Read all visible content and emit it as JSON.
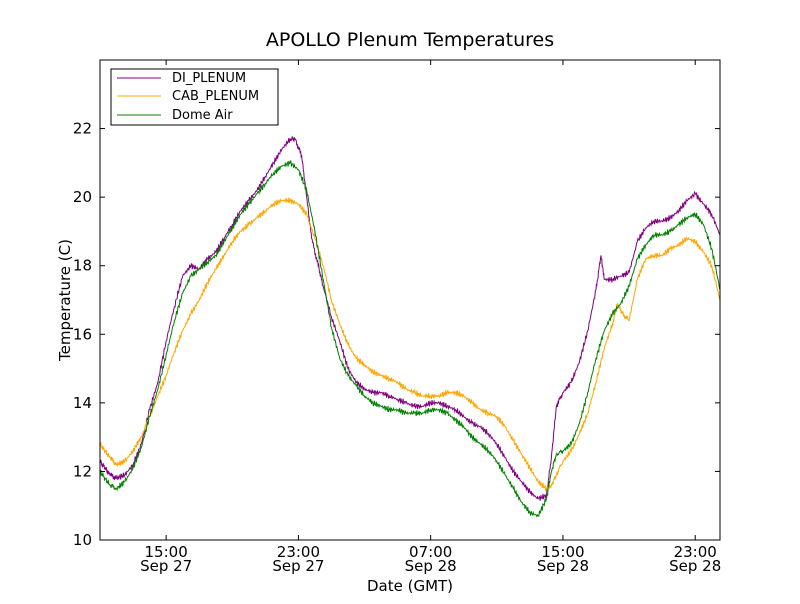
{
  "chart_data": {
    "type": "line",
    "title": "APOLLO Plenum Temperatures",
    "xlabel": "Date (GMT)",
    "ylabel": "Temperature (C)",
    "xlim": [
      11.0,
      48.5
    ],
    "ylim": [
      10,
      24
    ],
    "x_unit": "hours since Sep 27 00:00 GMT",
    "yticks": [
      10,
      12,
      14,
      16,
      18,
      20,
      22
    ],
    "xticks": [
      {
        "x": 15,
        "time": "15:00",
        "date": "Sep 27"
      },
      {
        "x": 23,
        "time": "23:00",
        "date": "Sep 27"
      },
      {
        "x": 31,
        "time": "07:00",
        "date": "Sep 28"
      },
      {
        "x": 39,
        "time": "15:00",
        "date": "Sep 28"
      },
      {
        "x": 47,
        "time": "23:00",
        "date": "Sep 28"
      }
    ],
    "legend": {
      "position": "top-left"
    },
    "series": [
      {
        "name": "DI_PLENUM",
        "color": "#800080",
        "x": [
          11.0,
          11.3,
          11.6,
          12.0,
          12.5,
          13.0,
          13.5,
          14.0,
          14.5,
          15.0,
          15.5,
          16.0,
          16.5,
          17.0,
          17.5,
          18.0,
          18.5,
          19.0,
          19.5,
          20.0,
          20.5,
          21.0,
          21.5,
          22.0,
          22.5,
          22.8,
          23.2,
          23.5,
          23.8,
          24.2,
          24.5,
          25.0,
          25.5,
          26.0,
          26.5,
          27.0,
          27.5,
          28.0,
          28.5,
          29.0,
          29.5,
          30.0,
          30.5,
          31.0,
          31.5,
          32.0,
          32.5,
          33.0,
          33.5,
          34.0,
          34.5,
          35.0,
          35.5,
          36.0,
          36.5,
          37.0,
          37.5,
          38.0,
          38.3,
          38.6,
          39.0,
          39.5,
          40.0,
          40.5,
          41.0,
          41.3,
          41.5,
          42.0,
          42.5,
          43.0,
          43.5,
          44.0,
          44.5,
          45.0,
          45.5,
          46.0,
          46.5,
          47.0,
          47.5,
          48.0,
          48.5
        ],
        "values": [
          12.3,
          12.1,
          11.9,
          11.8,
          11.9,
          12.2,
          12.8,
          13.8,
          14.6,
          15.8,
          16.8,
          17.7,
          18.0,
          17.9,
          18.2,
          18.4,
          18.8,
          19.2,
          19.6,
          19.9,
          20.2,
          20.6,
          21.0,
          21.4,
          21.7,
          21.7,
          21.2,
          20.0,
          18.8,
          18.0,
          17.4,
          16.5,
          15.8,
          15.0,
          14.6,
          14.4,
          14.3,
          14.3,
          14.2,
          14.1,
          14.0,
          13.9,
          13.9,
          14.0,
          14.0,
          13.9,
          13.8,
          13.6,
          13.4,
          13.3,
          13.1,
          12.8,
          12.4,
          12.0,
          11.7,
          11.4,
          11.2,
          11.3,
          12.4,
          13.9,
          14.3,
          14.6,
          15.2,
          16.1,
          17.3,
          18.3,
          17.6,
          17.6,
          17.7,
          17.8,
          18.7,
          19.1,
          19.3,
          19.3,
          19.4,
          19.6,
          19.9,
          20.1,
          19.8,
          19.5,
          18.9
        ]
      },
      {
        "name": "CAB_PLENUM",
        "color": "#FFA500",
        "x": [
          11.0,
          11.3,
          11.6,
          12.0,
          12.5,
          13.0,
          13.5,
          14.0,
          14.5,
          15.0,
          15.5,
          16.0,
          16.5,
          17.0,
          17.5,
          18.0,
          18.5,
          19.0,
          19.5,
          20.0,
          20.5,
          21.0,
          21.5,
          22.0,
          22.5,
          23.0,
          23.5,
          24.0,
          24.5,
          25.0,
          25.5,
          26.0,
          26.5,
          27.0,
          27.5,
          28.0,
          28.5,
          29.0,
          29.5,
          30.0,
          30.5,
          31.0,
          31.5,
          32.0,
          32.5,
          33.0,
          33.5,
          34.0,
          34.5,
          35.0,
          35.5,
          36.0,
          36.5,
          37.0,
          37.5,
          38.0,
          38.3,
          38.6,
          39.0,
          39.5,
          40.0,
          40.5,
          41.0,
          41.5,
          42.0,
          42.3,
          42.6,
          43.0,
          43.5,
          44.0,
          44.5,
          45.0,
          45.5,
          46.0,
          46.5,
          47.0,
          47.5,
          48.0,
          48.5
        ],
        "values": [
          12.8,
          12.6,
          12.4,
          12.2,
          12.3,
          12.6,
          13.0,
          13.6,
          14.2,
          14.8,
          15.5,
          16.1,
          16.6,
          17.0,
          17.5,
          17.9,
          18.3,
          18.7,
          19.0,
          19.2,
          19.4,
          19.6,
          19.8,
          19.9,
          19.9,
          19.8,
          19.5,
          18.8,
          18.0,
          17.0,
          16.3,
          15.7,
          15.3,
          15.1,
          14.9,
          14.8,
          14.7,
          14.6,
          14.4,
          14.3,
          14.2,
          14.2,
          14.2,
          14.3,
          14.3,
          14.2,
          14.0,
          13.8,
          13.7,
          13.6,
          13.3,
          12.9,
          12.5,
          12.1,
          11.7,
          11.5,
          11.6,
          11.9,
          12.3,
          12.6,
          13.1,
          13.7,
          14.6,
          15.6,
          16.3,
          16.9,
          16.6,
          16.4,
          17.6,
          18.2,
          18.3,
          18.3,
          18.5,
          18.6,
          18.8,
          18.7,
          18.4,
          18.0,
          17.0
        ]
      },
      {
        "name": "Dome Air",
        "color": "#008000",
        "x": [
          11.0,
          11.3,
          11.6,
          12.0,
          12.5,
          13.0,
          13.5,
          14.0,
          14.5,
          15.0,
          15.5,
          16.0,
          16.5,
          17.0,
          17.5,
          18.0,
          18.5,
          19.0,
          19.5,
          20.0,
          20.5,
          21.0,
          21.5,
          22.0,
          22.5,
          23.0,
          23.5,
          24.0,
          24.5,
          25.0,
          25.5,
          26.0,
          26.5,
          27.0,
          27.5,
          28.0,
          28.5,
          29.0,
          29.5,
          30.0,
          30.5,
          31.0,
          31.5,
          32.0,
          32.5,
          33.0,
          33.5,
          34.0,
          34.5,
          35.0,
          35.5,
          36.0,
          36.5,
          37.0,
          37.5,
          38.0,
          38.3,
          38.6,
          39.0,
          39.5,
          40.0,
          40.5,
          41.0,
          41.5,
          42.0,
          42.5,
          43.0,
          43.5,
          44.0,
          44.5,
          45.0,
          45.5,
          46.0,
          46.5,
          47.0,
          47.5,
          48.0,
          48.5
        ],
        "values": [
          12.0,
          11.8,
          11.6,
          11.5,
          11.7,
          12.1,
          12.7,
          13.6,
          14.4,
          15.4,
          16.4,
          17.2,
          17.7,
          17.9,
          18.1,
          18.3,
          18.7,
          19.1,
          19.5,
          19.8,
          20.1,
          20.4,
          20.7,
          20.9,
          21.0,
          20.8,
          20.2,
          19.0,
          17.6,
          16.2,
          15.3,
          14.8,
          14.5,
          14.2,
          14.0,
          13.9,
          13.8,
          13.8,
          13.7,
          13.7,
          13.7,
          13.8,
          13.8,
          13.7,
          13.5,
          13.3,
          13.0,
          12.8,
          12.6,
          12.3,
          11.9,
          11.5,
          11.1,
          10.8,
          10.7,
          11.2,
          12.0,
          12.5,
          12.6,
          12.8,
          13.4,
          14.3,
          15.3,
          16.1,
          16.6,
          16.9,
          17.4,
          18.2,
          18.6,
          18.9,
          18.9,
          19.0,
          19.2,
          19.4,
          19.5,
          19.2,
          18.5,
          17.3
        ]
      }
    ]
  }
}
